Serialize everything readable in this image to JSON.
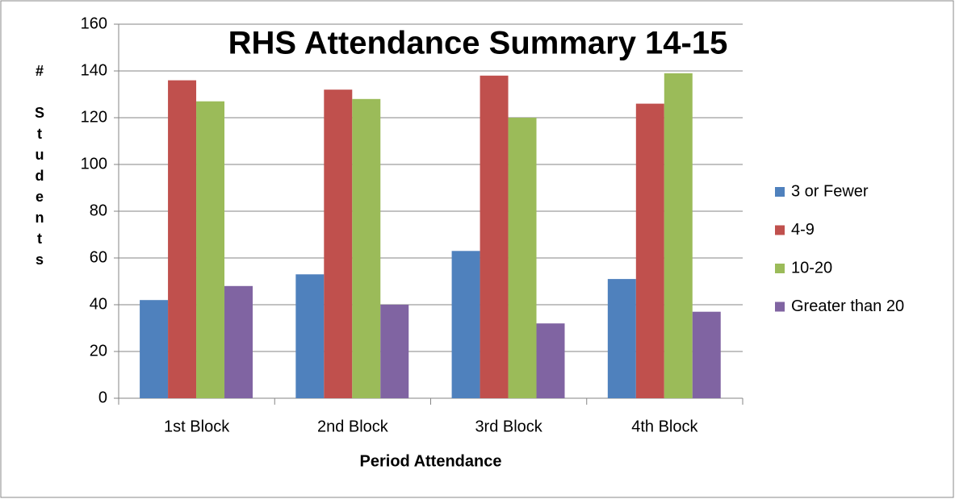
{
  "chart_data": {
    "type": "bar",
    "title": "RHS Attendance Summary 14-15",
    "x_label": "Period Attendance",
    "y_label": "# Students",
    "categories": [
      "1st Block",
      "2nd Block",
      "3rd Block",
      "4th Block"
    ],
    "series": [
      {
        "name": "3 or Fewer",
        "color": "#4f81bd",
        "values": [
          42,
          53,
          63,
          51
        ]
      },
      {
        "name": "4-9",
        "color": "#c0504d",
        "values": [
          136,
          132,
          138,
          126
        ]
      },
      {
        "name": "10-20",
        "color": "#9bbb59",
        "values": [
          127,
          128,
          120,
          139
        ]
      },
      {
        "name": "Greater than 20",
        "color": "#8064a2",
        "values": [
          48,
          40,
          32,
          37
        ]
      }
    ],
    "ylim": [
      0,
      160
    ],
    "yticks": [
      0,
      20,
      40,
      60,
      80,
      100,
      120,
      140,
      160
    ],
    "grid": true,
    "legend": "right"
  }
}
